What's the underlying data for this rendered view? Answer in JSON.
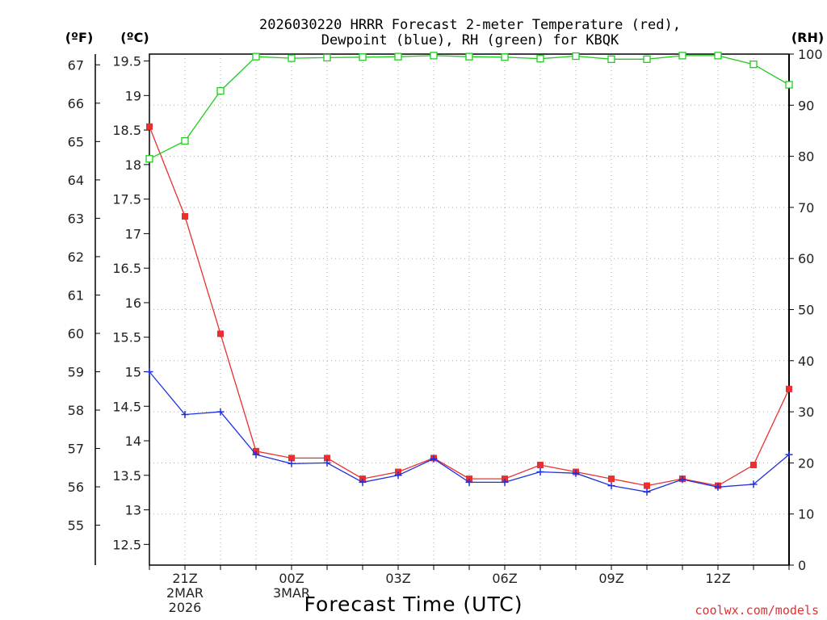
{
  "chart_data": {
    "type": "line",
    "title_line1": "2026030220 HRRR Forecast 2-meter Temperature (red),",
    "title_line2": "Dewpoint (blue), RH (green) for KBQK",
    "xlabel": "Forecast Time (UTC)",
    "credit": "coolwx.com/models",
    "units": {
      "fahrenheit": "(ºF)",
      "celsius": "(ºC)",
      "rh": "(RH)"
    },
    "x_hours": [
      20,
      21,
      22,
      23,
      24,
      25,
      26,
      27,
      28,
      29,
      30,
      31,
      32,
      33,
      34,
      35,
      36,
      37,
      38
    ],
    "x_range": [
      20,
      38
    ],
    "x_ticks": [
      {
        "hour": 21,
        "lines": [
          "21Z",
          "2MAR",
          "2026"
        ]
      },
      {
        "hour": 24,
        "lines": [
          "00Z",
          "3MAR"
        ]
      },
      {
        "hour": 27,
        "lines": [
          "03Z"
        ]
      },
      {
        "hour": 30,
        "lines": [
          "06Z"
        ]
      },
      {
        "hour": 33,
        "lines": [
          "09Z"
        ]
      },
      {
        "hour": 36,
        "lines": [
          "12Z"
        ]
      }
    ],
    "celsius_range": [
      12.2,
      19.6
    ],
    "celsius_ticks": [
      "12.5",
      "13",
      "13.5",
      "14",
      "14.5",
      "15",
      "15.5",
      "16",
      "16.5",
      "17",
      "17.5",
      "18",
      "18.5",
      "19",
      "19.5"
    ],
    "fahrenheit_ticks": [
      "55",
      "56",
      "57",
      "58",
      "59",
      "60",
      "61",
      "62",
      "63",
      "64",
      "65",
      "66",
      "67"
    ],
    "rh_range": [
      0,
      100
    ],
    "rh_ticks": [
      "0",
      "10",
      "20",
      "30",
      "40",
      "50",
      "60",
      "70",
      "80",
      "90",
      "100"
    ],
    "series": [
      {
        "name": "Temperature",
        "color": "#e83030",
        "axis": "celsius",
        "marker": "filled-square",
        "values": [
          18.55,
          17.25,
          15.55,
          13.85,
          13.75,
          13.75,
          13.45,
          13.55,
          13.75,
          13.45,
          13.45,
          13.65,
          13.55,
          13.45,
          13.35,
          13.45,
          13.35,
          13.65,
          14.75
        ]
      },
      {
        "name": "Dewpoint",
        "color": "#2030e0",
        "axis": "celsius",
        "marker": "plus",
        "values": [
          15.0,
          14.38,
          14.42,
          13.8,
          13.67,
          13.68,
          13.4,
          13.5,
          13.74,
          13.4,
          13.4,
          13.55,
          13.53,
          13.35,
          13.26,
          13.44,
          13.33,
          13.37,
          13.8
        ]
      },
      {
        "name": "RH",
        "color": "#20cc20",
        "axis": "rh",
        "marker": "open-square",
        "values": [
          79.5,
          83.0,
          92.8,
          99.5,
          99.2,
          99.3,
          99.4,
          99.5,
          99.7,
          99.5,
          99.4,
          99.1,
          99.6,
          99.0,
          99.0,
          99.7,
          99.7,
          98.0,
          94.0
        ]
      }
    ]
  }
}
